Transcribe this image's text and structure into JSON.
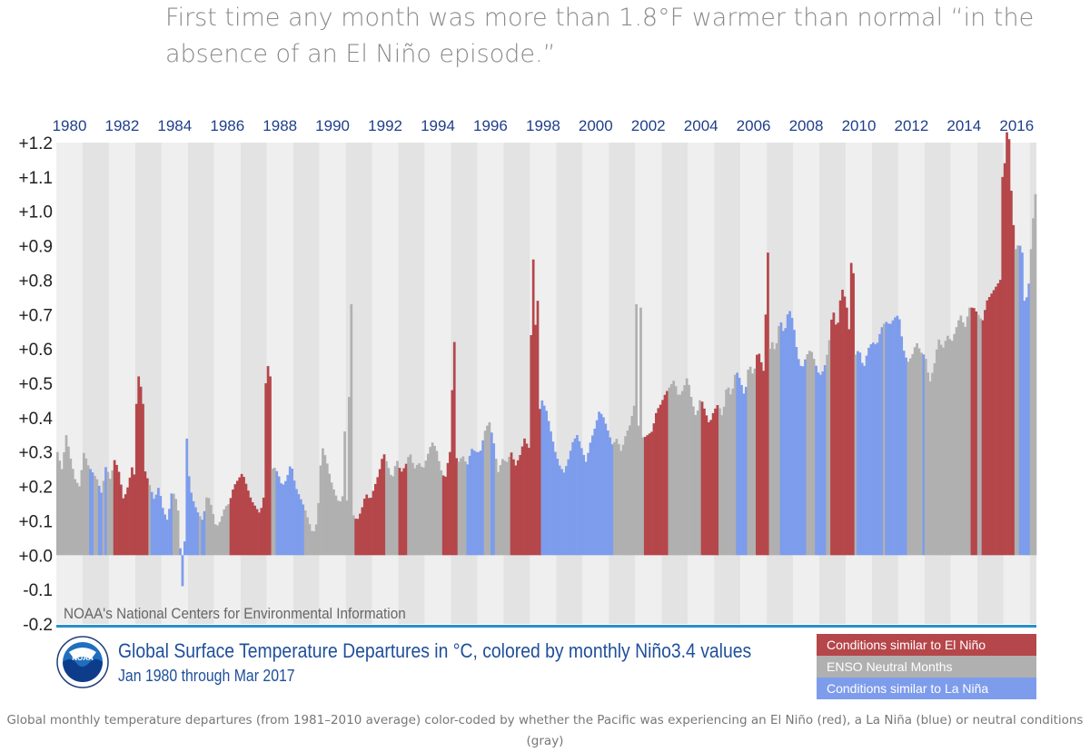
{
  "headline": "First time any month was more than 1.8°F warmer than normal “in the absence of an El Niño episode.”",
  "caption": "Global monthly temperature departures (from 1981–2010 average) color-coded by whether the Pacific was experiencing an El Niño (red), a La Niña (blue) or neutral conditions (gray)",
  "source_note": "NOAA's National Centers for Environmental Information",
  "logo_text": "NOAA",
  "colors": {
    "el_nino": "#b5464a",
    "neutral": "#b0b0b0",
    "la_nina": "#7d9cec",
    "title": "#1f4f9b",
    "accent_line": "#2a8fc9"
  },
  "legend": [
    {
      "label": "Conditions similar to El Niño",
      "key": "el_nino"
    },
    {
      "label": "ENSO Neutral Months",
      "key": "neutral"
    },
    {
      "label": "Conditions similar to La Niña",
      "key": "la_nina"
    }
  ],
  "chart_data": {
    "type": "bar",
    "title": "Global Surface Temperature Departures in °C, colored by monthly Niño3.4 values",
    "subtitle": "Jan 1980 through Mar 2017",
    "ylim": [
      -0.2,
      1.2
    ],
    "yticks": [
      "+1.2",
      "+1.1",
      "+1.0",
      "+0.9",
      "+0.8",
      "+0.7",
      "+0.6",
      "+0.5",
      "+0.4",
      "+0.3",
      "+0.2",
      "+0.1",
      "+0.0",
      "-0.1",
      "-0.2"
    ],
    "ytick_values": [
      1.2,
      1.1,
      1.0,
      0.9,
      0.8,
      0.7,
      0.6,
      0.5,
      0.4,
      0.3,
      0.2,
      0.1,
      0.0,
      -0.1,
      -0.2
    ],
    "xticks": [
      "1980",
      "1982",
      "1984",
      "1986",
      "1988",
      "1990",
      "1992",
      "1994",
      "1996",
      "1998",
      "2000",
      "2002",
      "2004",
      "2006",
      "2008",
      "2010",
      "2012",
      "2014",
      "2016"
    ],
    "x_start": "1980-01",
    "x_end": "2017-03",
    "grid": "alternating-year-bands",
    "legend_position": "bottom-right",
    "series": [
      {
        "category": "neutral",
        "values": [
          0.3,
          0.25,
          0.35,
          0.28,
          0.22,
          0.2,
          0.3,
          0.26,
          0.24,
          0.22,
          0.18,
          0.26,
          0.22,
          0.28,
          0.24,
          0.16,
          0.2,
          0.26,
          0.2,
          0.28,
          0.24,
          0.2,
          0.16,
          0.2,
          0.13,
          0.1,
          0.19,
          0.16,
          0.08,
          0.42,
          0.2,
          0.15,
          0.12,
          0.1,
          0.18,
          0.14,
          0.08,
          0.1,
          0.14,
          0.15,
          0.2,
          0.22,
          0.24,
          0.2,
          0.16,
          0.14,
          0.12,
          0.18,
          0.22,
          0.26,
          0.24,
          0.2,
          0.22,
          0.27,
          0.2,
          0.17,
          0.14,
          0.1,
          0.06,
          0.1,
          0.32,
          0.28,
          0.22,
          0.18,
          0.15,
          0.18,
          0.15,
          0.12,
          0.1,
          0.13,
          0.18,
          0.16,
          0.2,
          0.24,
          0.3,
          0.26,
          0.22,
          0.28,
          0.24,
          0.26,
          0.3,
          0.25,
          0.27,
          0.25,
          0.29,
          0.33,
          0.31,
          0.25,
          0.22,
          0.3,
          0.3,
          0.27,
          0.29,
          0.26,
          0.31,
          0.3,
          0.3,
          0.36,
          0.39,
          0.33,
          0.24,
          0.28,
          0.27,
          0.3,
          0.26,
          0.29,
          0.34,
          0.31,
          0.44,
          0.4,
          0.45,
          0.42,
          0.36,
          0.3,
          0.26,
          0.24,
          0.28,
          0.33,
          0.35,
          0.31,
          0.27,
          0.33,
          0.37,
          0.42,
          0.4,
          0.36,
          0.32,
          0.34,
          0.3,
          0.35,
          0.38,
          0.44,
          0.37,
          0.34,
          0.35,
          0.36,
          0.42,
          0.44,
          0.47,
          0.49,
          0.51,
          0.46,
          0.48,
          0.52,
          0.45,
          0.4,
          0.46,
          0.42,
          0.38,
          0.42,
          0.44,
          0.4,
          0.5,
          0.46,
          0.54,
          0.51,
          0.46,
          0.56,
          0.52,
          0.6,
          0.55,
          0.5,
          0.63,
          0.59,
          0.69,
          0.64,
          0.72,
          0.68,
          0.58,
          0.54,
          0.58,
          0.6,
          0.56,
          0.52,
          0.54,
          0.6,
          0.72,
          0.65,
          0.78,
          0.74,
          0.62,
          0.58,
          0.6,
          0.54,
          0.6,
          0.62,
          0.61,
          0.66,
          0.68,
          0.67,
          0.69,
          0.7,
          0.6,
          0.56,
          0.58,
          0.62,
          0.59,
          0.58,
          0.5,
          0.55,
          0.63,
          0.6,
          0.64,
          0.62,
          0.66,
          0.7,
          0.66,
          0.72,
          0.72,
          0.7,
          0.68,
          0.74,
          0.76,
          0.78,
          0.8,
          0.82,
          0.86,
          0.88,
          0.9,
          0.95,
          0.96,
          0.98,
          1.02
        ]
      }
    ]
  }
}
